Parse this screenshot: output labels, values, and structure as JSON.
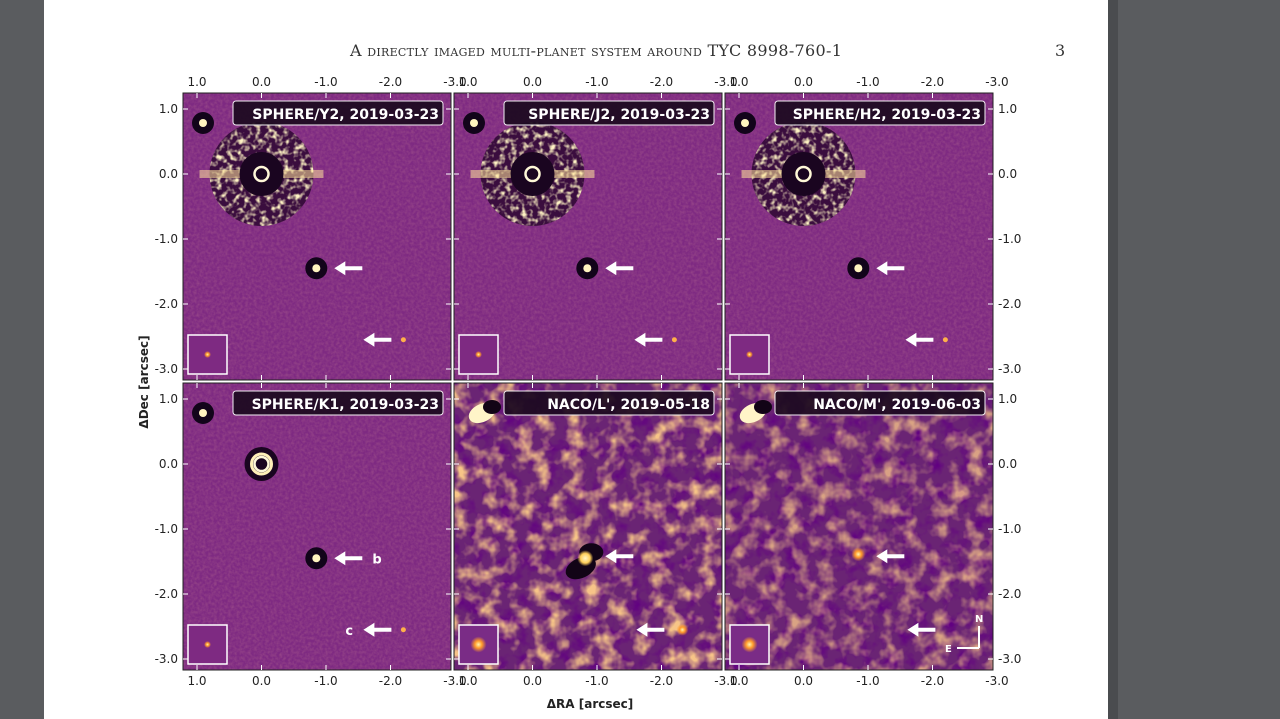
{
  "page": {
    "header_title": "A directly imaged multi-planet system around TYC 8998-760-1",
    "page_number": "3"
  },
  "figure": {
    "x_axis_label": "ΔRA [arcsec]",
    "y_axis_label": "ΔDec [arcsec]",
    "x_ticks": [
      "1.0",
      "0.0",
      "-1.0",
      "-2.0",
      "-3.0"
    ],
    "y_ticks": [
      "1.0",
      "0.0",
      "-1.0",
      "-2.0",
      "-3.0"
    ],
    "compass_north": "N",
    "compass_east": "E",
    "planet_b_label": "b",
    "planet_c_label": "c",
    "panels": [
      {
        "label": "SPHERE/Y2, 2019-03-23",
        "style": "sphere"
      },
      {
        "label": "SPHERE/J2, 2019-03-23",
        "style": "sphere"
      },
      {
        "label": "SPHERE/H2, 2019-03-23",
        "style": "sphere"
      },
      {
        "label": "SPHERE/K1, 2019-03-23",
        "style": "sphere-k"
      },
      {
        "label": "NACO/L', 2019-05-18",
        "style": "naco"
      },
      {
        "label": "NACO/M', 2019-06-03",
        "style": "naco-m"
      }
    ],
    "colors": {
      "background": "#7e2a82",
      "bright": "#ffe9a0",
      "arrow": "#ffffff"
    }
  }
}
